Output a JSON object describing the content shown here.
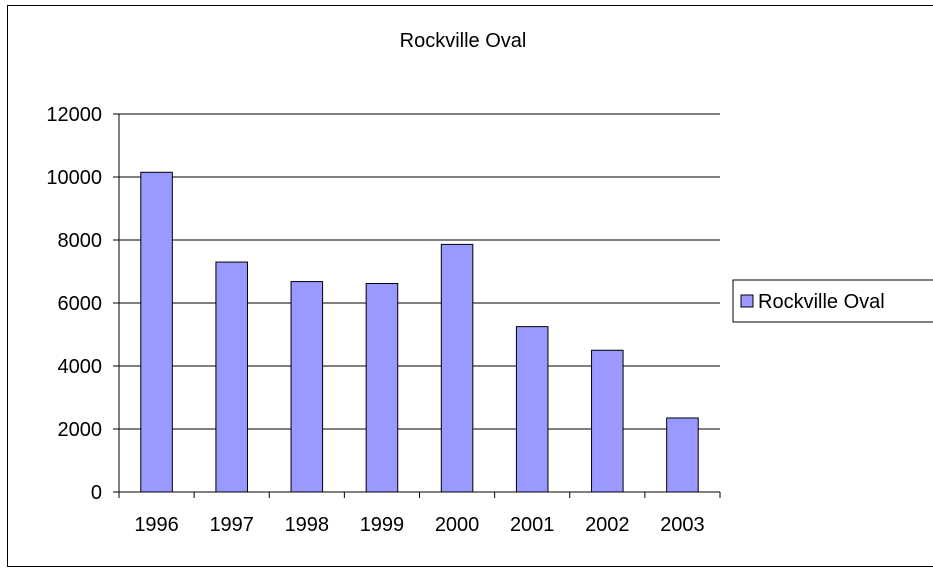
{
  "chart_data": {
    "type": "bar",
    "title": "Rockville Oval",
    "xlabel": "",
    "ylabel": "",
    "categories": [
      "1996",
      "1997",
      "1998",
      "1999",
      "2000",
      "2001",
      "2002",
      "2003"
    ],
    "series": [
      {
        "name": "Rockville Oval",
        "values": [
          10150,
          7300,
          6680,
          6620,
          7860,
          5250,
          4500,
          2350
        ]
      }
    ],
    "ylim": [
      0,
      12000
    ],
    "yticks": [
      "0",
      "2000",
      "4000",
      "6000",
      "8000",
      "10000",
      "12000"
    ],
    "grid": true,
    "legend": "right",
    "colors": {
      "bar_fill": "#9999ff",
      "bar_stroke": "#000000",
      "grid": "#000000"
    }
  }
}
